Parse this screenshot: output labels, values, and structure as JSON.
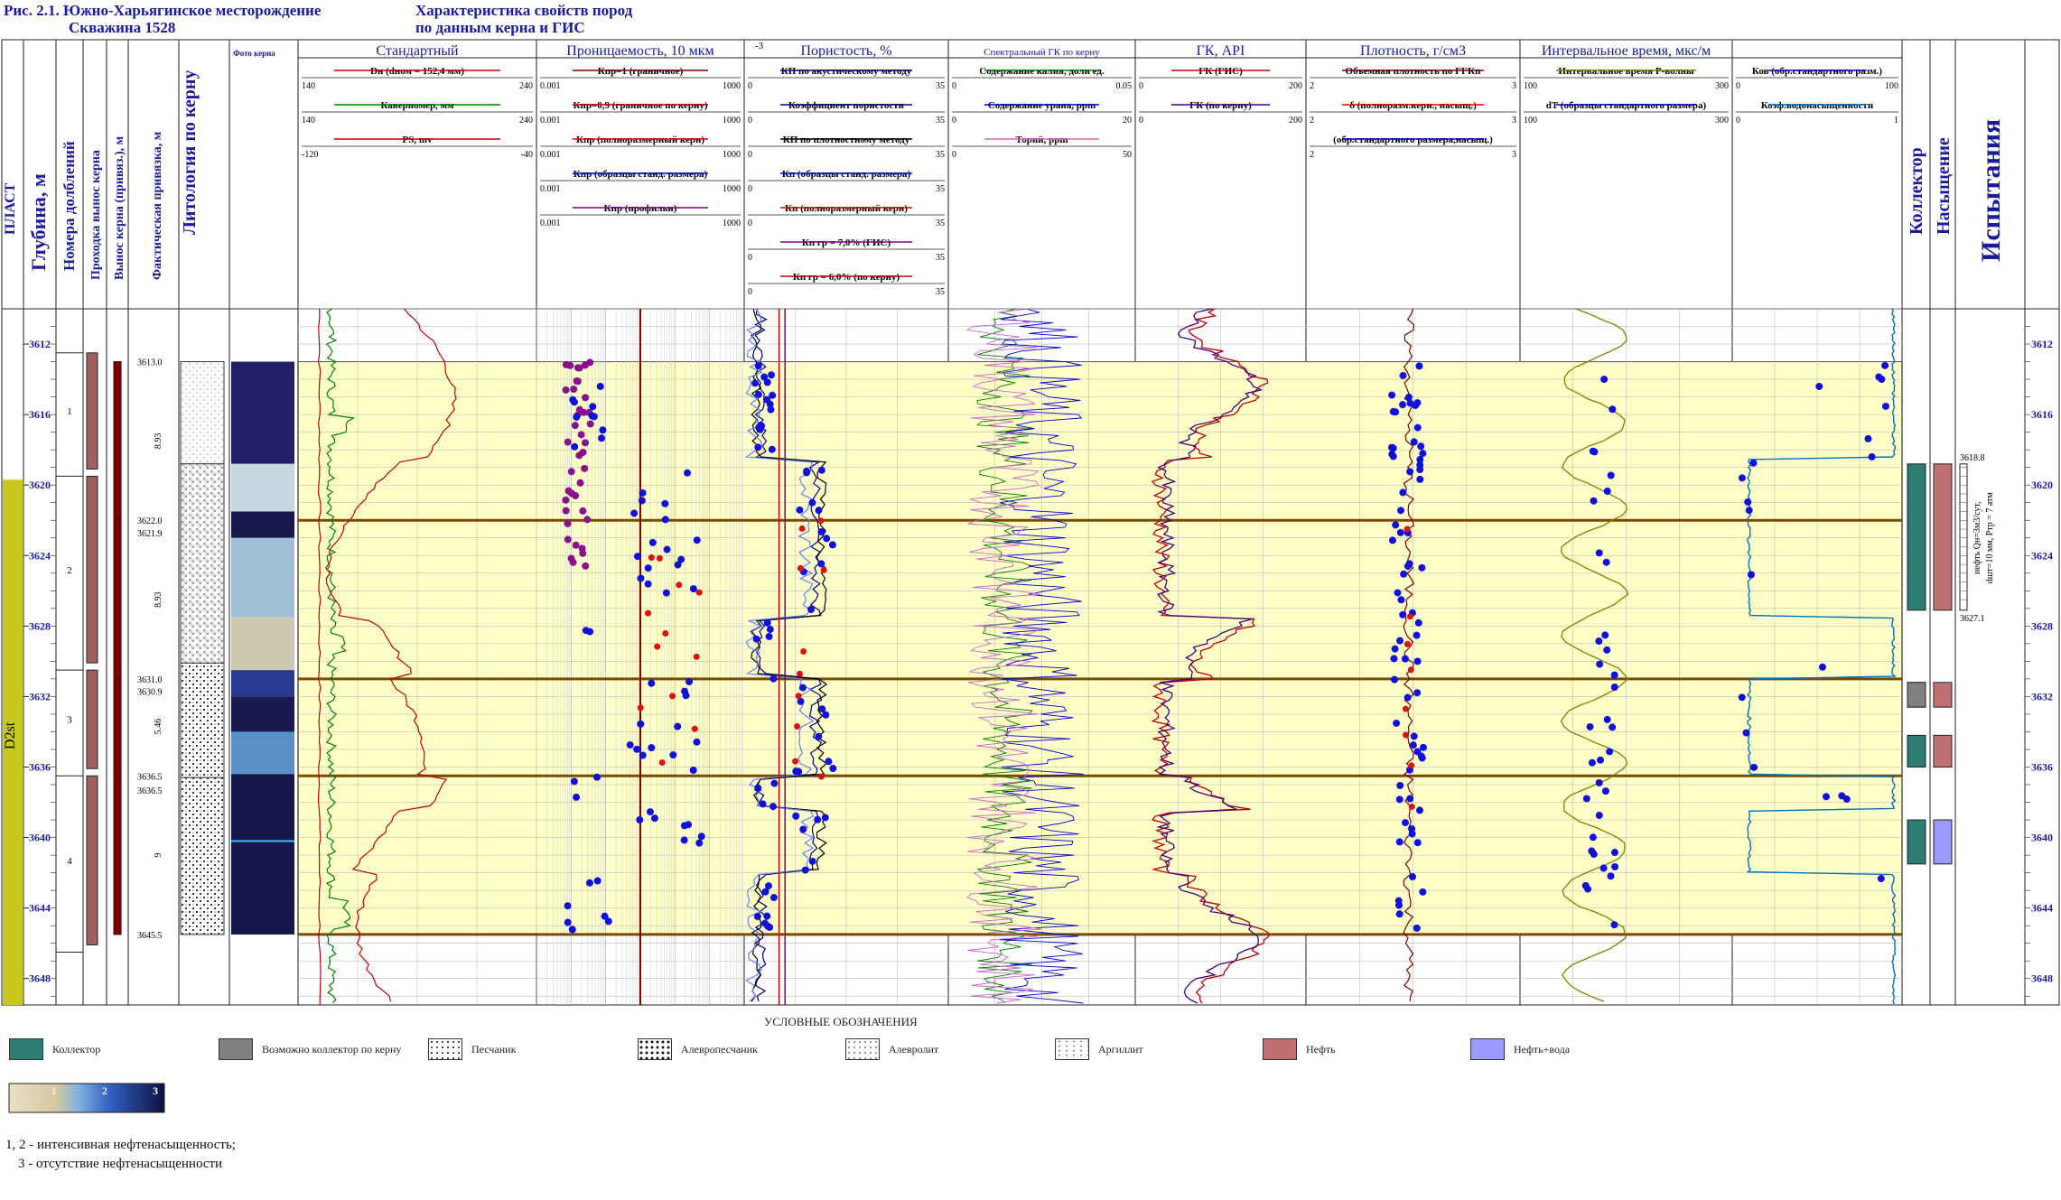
{
  "header": {
    "fig_title": "Рис. 2.1. Южно-Харьягинское месторождение",
    "well": "Скважина 1528",
    "subtitle1": "Характеристика свойств пород",
    "subtitle2": "по данным керна и ГИС"
  },
  "columns": {
    "plast": "ПЛАСТ",
    "depth": "Глубина, м",
    "runs": "Номера долблений",
    "penetration": "Проходка вынос керна",
    "core_recovery": "Вынос керна (привяз.), м",
    "actual_tie": "Фактическая привязка, м",
    "lithology": "Литология по керну",
    "core_photo": "Фото керна",
    "collector": "Коллектор",
    "saturation": "Насыщение",
    "tests": "Испытания"
  },
  "tracks": [
    {
      "title": "Стандартный",
      "curves": [
        {
          "name": "Dн (dном = 152,4 мм)",
          "min": "140",
          "max": "240",
          "color": "#c00000"
        },
        {
          "name": "Кавернoмер, мм",
          "min": "140",
          "max": "240",
          "color": "#008000"
        },
        {
          "name": "PS, mv",
          "min": "-120",
          "max": "-40",
          "color": "#c00000"
        }
      ]
    },
    {
      "title": "Проницаемость, 10 мкм",
      "curves": [
        {
          "name": "Кпр=1 (граничное)",
          "min": "0.001",
          "max": "1000",
          "color": "#800000"
        },
        {
          "name": "Кпр=0,9 (граничное по керну)",
          "min": "0.001",
          "max": "1000",
          "color": "#c00000"
        },
        {
          "name": "Кпр (полноразмерный керн)",
          "min": "0.001",
          "max": "1000",
          "color": "#e00000"
        },
        {
          "name": "Кпр (образцы станд. размера)",
          "min": "0.001",
          "max": "1000",
          "color": "#0000cc"
        },
        {
          "name": "Кпр (профильн)",
          "min": "0.001",
          "max": "1000",
          "color": "#800080"
        }
      ]
    },
    {
      "title": "Пористость, %",
      "extra": "-3",
      "curves": [
        {
          "name": "КП по акустическому методу",
          "min": "0",
          "max": "35",
          "color": "#000080"
        },
        {
          "name": "Коэффициент пористости",
          "min": "0",
          "max": "35",
          "color": "#000080"
        },
        {
          "name": "КП по плотностному методу",
          "min": "0",
          "max": "35",
          "color": "#000000"
        },
        {
          "name": "Кп (образцы станд. размера)",
          "min": "0",
          "max": "35",
          "color": "#0000cc"
        },
        {
          "name": "Кп (полноразмерный керн)",
          "min": "0",
          "max": "35",
          "color": "#e00000"
        },
        {
          "name": "Кп гр = 7,0% (ГИС)",
          "min": "0",
          "max": "35",
          "color": "#800080"
        },
        {
          "name": "Кп гр = 6,0% (по керну)",
          "min": "0",
          "max": "35",
          "color": "#c00000"
        }
      ]
    },
    {
      "title": "Спектральный ГК по керну",
      "curves": [
        {
          "name": "Содержание калия, доли ед.",
          "min": "0",
          "max": "0.05",
          "color": "#008000"
        },
        {
          "name": "Содержание урана, ppm",
          "min": "0",
          "max": "20",
          "color": "#0000cc"
        },
        {
          "name": "Торий, ppm",
          "min": "0",
          "max": "50",
          "color": "#cc66cc"
        }
      ]
    },
    {
      "title": "ГК, API",
      "curves": [
        {
          "name": "ГК (ГИС)",
          "min": "0",
          "max": "200",
          "color": "#c00000"
        },
        {
          "name": "ГК (по керну)",
          "min": "0",
          "max": "200",
          "color": "#400080"
        }
      ]
    },
    {
      "title": "Плотность, г/см3",
      "curves": [
        {
          "name": "Объемная плотность по ГГКп",
          "min": "2",
          "max": "3",
          "color": "#800000"
        },
        {
          "name": "δ (полноразм.керн., насыщ.)",
          "min": "2",
          "max": "3",
          "color": "#e00000"
        },
        {
          "name": "(обр.стандартного размера,насыщ.)",
          "min": "2",
          "max": "3",
          "color": "#0000cc"
        }
      ]
    },
    {
      "title": "Интервальное время, мкс/м",
      "curves": [
        {
          "name": "Интервальное время Р-волны",
          "min": "100",
          "max": "300",
          "color": "#808000"
        },
        {
          "name": "dT (образцы стандартного размера)",
          "min": "100",
          "max": "300",
          "color": "#0000cc"
        }
      ]
    },
    {
      "title": "",
      "curves": [
        {
          "name": "Ков (обр.стандартного разм.)",
          "min": "0",
          "max": "100",
          "color": "#0000cc"
        },
        {
          "name": "Коэф.водонасыщенности",
          "min": "0",
          "max": "1",
          "color": "#0070c0"
        }
      ]
    }
  ],
  "depth_ticks": [
    "3612",
    "3616",
    "3620",
    "3624",
    "3628",
    "3632",
    "3636",
    "3640",
    "3644",
    "3648"
  ],
  "plast_name": "D2st",
  "run_numbers": [
    "1",
    "2",
    "3",
    "4"
  ],
  "tie_labels": [
    "3613.0",
    "3622.0",
    "3621.9",
    "3631.0",
    "3630.9",
    "3636.5",
    "3636.5",
    "3645.5"
  ],
  "tie_lengths": [
    "8.93",
    "8.93",
    "5.46",
    "9"
  ],
  "test": {
    "top": "3618.8",
    "bottom": "3627.1",
    "text1": "нефть Qн=3м3/сут,",
    "text2": "dшт=10 мм, Pтр = 7 атм"
  },
  "legend_title": "УСЛОВНЫЕ ОБОЗНАЧЕНИЯ",
  "legend": [
    {
      "label": "Коллектор",
      "color": "#2e7d73"
    },
    {
      "label": "Возможно коллектор по керну",
      "color": "#808080"
    },
    {
      "label": "Песчаник",
      "color": "pattern-sand"
    },
    {
      "label": "Алевропесчаник",
      "color": "pattern-silt"
    },
    {
      "label": "Алевролит",
      "color": "pattern-alev"
    },
    {
      "label": "Аргиллит",
      "color": "pattern-arg"
    },
    {
      "label": "Нефть",
      "color": "#c07070"
    },
    {
      "label": "Нефть+вода",
      "color": "#9999ff"
    }
  ],
  "photo_scale": [
    "1",
    "2",
    "3"
  ],
  "notes": [
    "1, 2 - интенсивная нефтенасыщенность;",
    "3 - отсутствие нефтенасыщенности"
  ],
  "chart_data": {
    "type": "line",
    "depth_range": [
      3610,
      3649.5
    ],
    "core_interval": [
      3613.0,
      3645.5
    ],
    "horizontal_markers": [
      3622.0,
      3631.0,
      3636.5
    ],
    "collector_intervals": [
      [
        3618.8,
        3627.1
      ],
      [
        3631.2,
        3632.6
      ],
      [
        3634.2,
        3636.0
      ],
      [
        3639.0,
        3641.5
      ]
    ],
    "saturation_intervals": [
      {
        "range": [
          3618.8,
          3627.1
        ],
        "type": "oil"
      },
      {
        "range": [
          3631.2,
          3632.6
        ],
        "type": "oil"
      },
      {
        "range": [
          3634.2,
          3636.0
        ],
        "type": "oil"
      },
      {
        "range": [
          3639.0,
          3641.5
        ],
        "type": "oil+water"
      }
    ],
    "lithology": [
      {
        "range": [
          3613.0,
          3618.8
        ],
        "type": "alev"
      },
      {
        "range": [
          3618.8,
          3630.1
        ],
        "type": "sand"
      },
      {
        "range": [
          3630.1,
          3636.6
        ],
        "type": "silt"
      },
      {
        "range": [
          3636.6,
          3645.5
        ],
        "type": "silt"
      }
    ]
  }
}
